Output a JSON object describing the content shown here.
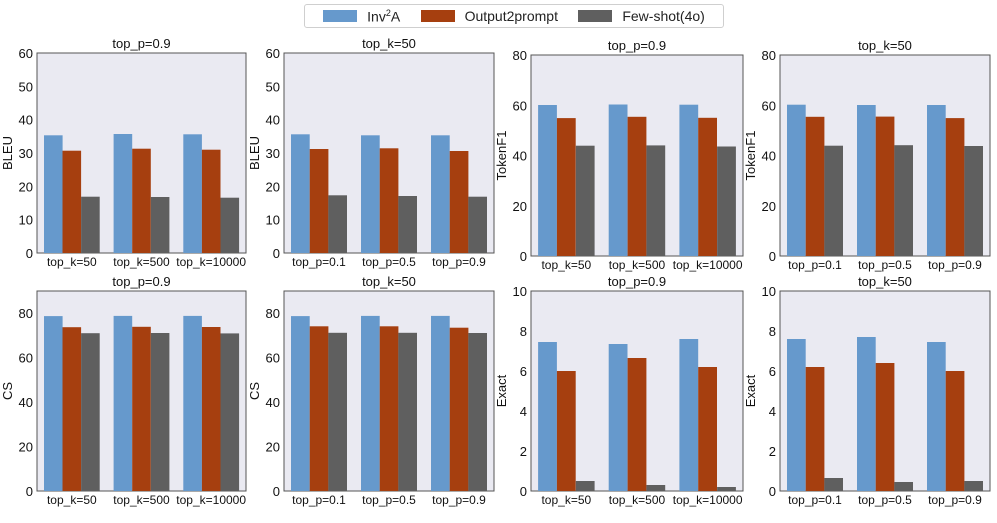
{
  "legend": {
    "items": [
      {
        "label": "Inv",
        "sup": "2",
        "suffix": "A",
        "color": "#6699cc"
      },
      {
        "label": "Output2prompt",
        "sup": "",
        "suffix": "",
        "color": "#a63f0f"
      },
      {
        "label": "Few-shot(4o)",
        "sup": "",
        "suffix": "",
        "color": "#5f5f5f"
      }
    ]
  },
  "colors": {
    "panel_bg": "#eaeaf2",
    "inv2a": "#6699cc",
    "output2prompt": "#a63f0f",
    "fewshot": "#5f5f5f"
  },
  "chart_data": [
    {
      "type": "bar",
      "title": "top_p=0.9",
      "ylabel": "BLEU",
      "ylim": [
        0,
        60
      ],
      "yticks": [
        0,
        10,
        20,
        30,
        40,
        50,
        60
      ],
      "categories": [
        "top_k=50",
        "top_k=500",
        "top_k=10000"
      ],
      "series": [
        {
          "name": "Inv²A",
          "values": [
            35.3,
            35.7,
            35.6
          ]
        },
        {
          "name": "Output2prompt",
          "values": [
            30.7,
            31.3,
            31.0
          ]
        },
        {
          "name": "Few-shot(4o)",
          "values": [
            16.9,
            16.8,
            16.6
          ]
        }
      ]
    },
    {
      "type": "bar",
      "title": "top_k=50",
      "ylabel": "BLEU",
      "ylim": [
        0,
        60
      ],
      "yticks": [
        0,
        10,
        20,
        30,
        40,
        50,
        60
      ],
      "categories": [
        "top_p=0.1",
        "top_p=0.5",
        "top_p=0.9"
      ],
      "series": [
        {
          "name": "Inv²A",
          "values": [
            35.6,
            35.3,
            35.3
          ]
        },
        {
          "name": "Output2prompt",
          "values": [
            31.2,
            31.4,
            30.6
          ]
        },
        {
          "name": "Few-shot(4o)",
          "values": [
            17.3,
            17.1,
            16.9
          ]
        }
      ]
    },
    {
      "type": "bar",
      "title": "top_p=0.9",
      "ylabel": "TokenF1",
      "ylim": [
        0,
        80
      ],
      "yticks": [
        0,
        20,
        40,
        60,
        80
      ],
      "categories": [
        "top_k=50",
        "top_k=500",
        "top_k=10000"
      ],
      "series": [
        {
          "name": "Inv²A",
          "values": [
            60.1,
            60.3,
            60.2
          ]
        },
        {
          "name": "Output2prompt",
          "values": [
            54.9,
            55.4,
            55.0
          ]
        },
        {
          "name": "Few-shot(4o)",
          "values": [
            43.9,
            44.0,
            43.6
          ]
        }
      ]
    },
    {
      "type": "bar",
      "title": "top_k=50",
      "ylabel": "TokenF1",
      "ylim": [
        0,
        80
      ],
      "yticks": [
        0,
        20,
        40,
        60,
        80
      ],
      "categories": [
        "top_p=0.1",
        "top_p=0.5",
        "top_p=0.9"
      ],
      "series": [
        {
          "name": "Inv²A",
          "values": [
            60.2,
            60.1,
            60.1
          ]
        },
        {
          "name": "Output2prompt",
          "values": [
            55.4,
            55.5,
            54.9
          ]
        },
        {
          "name": "Few-shot(4o)",
          "values": [
            43.9,
            44.1,
            43.8
          ]
        }
      ]
    },
    {
      "type": "bar",
      "title": "top_p=0.9",
      "ylabel": "CS",
      "ylim": [
        0,
        90
      ],
      "yticks": [
        0,
        20,
        40,
        60,
        80
      ],
      "categories": [
        "top_k=50",
        "top_k=500",
        "top_k=10000"
      ],
      "series": [
        {
          "name": "Inv²A",
          "values": [
            78.7,
            78.8,
            78.8
          ]
        },
        {
          "name": "Output2prompt",
          "values": [
            73.7,
            73.9,
            73.8
          ]
        },
        {
          "name": "Few-shot(4o)",
          "values": [
            71.0,
            71.1,
            70.9
          ]
        }
      ]
    },
    {
      "type": "bar",
      "title": "top_k=50",
      "ylabel": "CS",
      "ylim": [
        0,
        90
      ],
      "yticks": [
        0,
        20,
        40,
        60,
        80
      ],
      "categories": [
        "top_p=0.1",
        "top_p=0.5",
        "top_p=0.9"
      ],
      "series": [
        {
          "name": "Inv²A",
          "values": [
            78.7,
            78.8,
            78.8
          ]
        },
        {
          "name": "Output2prompt",
          "values": [
            74.1,
            74.1,
            73.5
          ]
        },
        {
          "name": "Few-shot(4o)",
          "values": [
            71.2,
            71.2,
            71.1
          ]
        }
      ]
    },
    {
      "type": "bar",
      "title": "top_p=0.9",
      "ylabel": "Exact",
      "ylim": [
        0,
        10
      ],
      "yticks": [
        0,
        2,
        4,
        6,
        8,
        10
      ],
      "categories": [
        "top_k=50",
        "top_k=500",
        "top_k=10000"
      ],
      "series": [
        {
          "name": "Inv²A",
          "values": [
            7.45,
            7.35,
            7.6
          ]
        },
        {
          "name": "Output2prompt",
          "values": [
            6.0,
            6.65,
            6.2
          ]
        },
        {
          "name": "Few-shot(4o)",
          "values": [
            0.5,
            0.3,
            0.2
          ]
        }
      ]
    },
    {
      "type": "bar",
      "title": "top_k=50",
      "ylabel": "Exact",
      "ylim": [
        0,
        10
      ],
      "yticks": [
        0,
        2,
        4,
        6,
        8,
        10
      ],
      "categories": [
        "top_p=0.1",
        "top_p=0.5",
        "top_p=0.9"
      ],
      "series": [
        {
          "name": "Inv²A",
          "values": [
            7.6,
            7.7,
            7.45
          ]
        },
        {
          "name": "Output2prompt",
          "values": [
            6.2,
            6.4,
            6.0
          ]
        },
        {
          "name": "Few-shot(4o)",
          "values": [
            0.65,
            0.45,
            0.5
          ]
        }
      ]
    }
  ]
}
